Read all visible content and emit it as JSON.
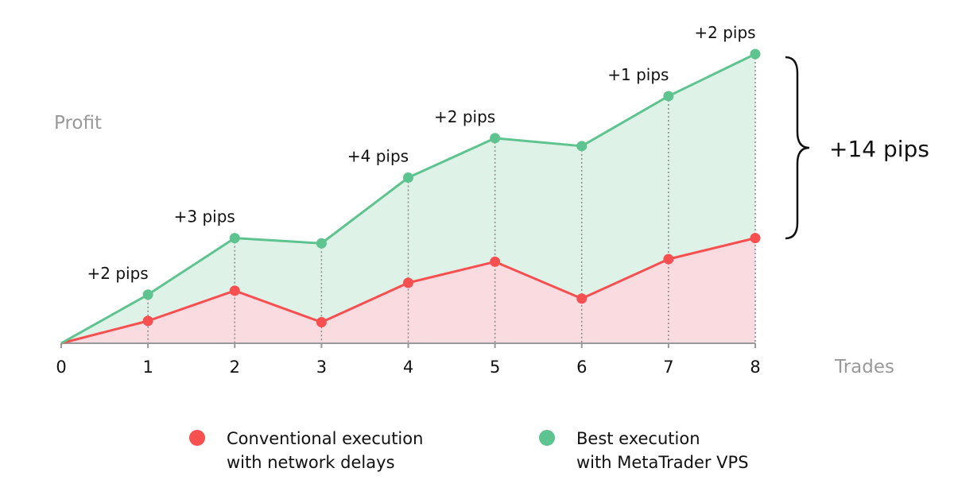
{
  "chart_data": {
    "type": "area",
    "xlabel": "Trades",
    "ylabel": "Profit",
    "x": [
      0,
      1,
      2,
      3,
      4,
      5,
      6,
      7,
      8
    ],
    "xlim": [
      0,
      8
    ],
    "ylim": [
      0,
      22
    ],
    "grid": false,
    "legend_placement": "bottom",
    "series": [
      {
        "name": "Best execution with MetaTrader VPS",
        "legend_lines": [
          "Best execution",
          "with MetaTrader VPS"
        ],
        "color": "#5ec48f",
        "fill": "#dff2e7",
        "values": [
          0,
          3.7,
          8.0,
          7.6,
          12.6,
          15.6,
          15.0,
          18.8,
          22.0
        ]
      },
      {
        "name": "Conventional execution with network delays",
        "legend_lines": [
          "Conventional execution",
          "with network delays"
        ],
        "color": "#f85050",
        "fill": "#fadbe0",
        "values": [
          0,
          1.7,
          4.0,
          1.6,
          4.6,
          6.2,
          3.4,
          6.4,
          8.0
        ]
      }
    ],
    "annotations": [
      {
        "x": 1,
        "text": "+2 pips"
      },
      {
        "x": 2,
        "text": "+3 pips"
      },
      {
        "x": 4,
        "text": "+4 pips"
      },
      {
        "x": 5,
        "text": "+2 pips"
      },
      {
        "x": 7,
        "text": "+1 pips"
      },
      {
        "x": 8,
        "text": "+2 pips"
      }
    ],
    "total_annotation": "+14 pips"
  }
}
